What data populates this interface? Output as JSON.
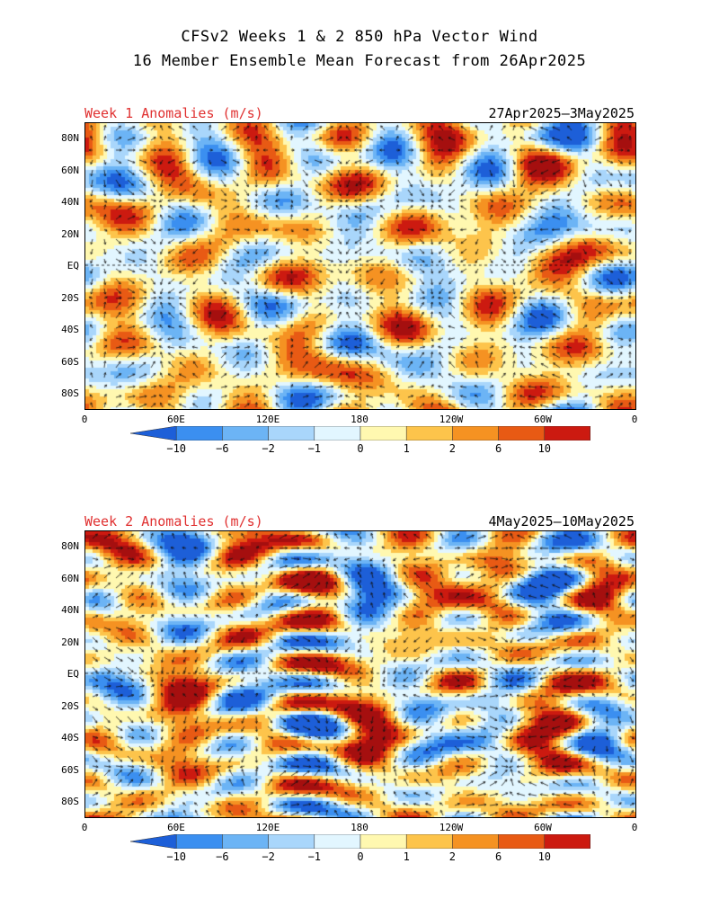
{
  "title_line1": "CFSv2 Weeks 1 & 2 850 hPa Vector Wind",
  "title_line2": "16 Member Ensemble Mean Forecast from 26Apr2025",
  "panels": [
    {
      "label": "Week 1 Anomalies (m/s)",
      "dates": "27Apr2025—3May2025"
    },
    {
      "label": "Week 2 Anomalies (m/s)",
      "dates": "4May2025—10May2025"
    }
  ],
  "lat_labels": [
    "80N",
    "60N",
    "40N",
    "20N",
    "EQ",
    "20S",
    "40S",
    "60S",
    "80S"
  ],
  "lon_labels": [
    "0",
    "60E",
    "120E",
    "180",
    "120W",
    "60W",
    "0"
  ],
  "colorbar": {
    "tick_labels": [
      "−10",
      "−6",
      "−2",
      "−1",
      "0",
      "1",
      "2",
      "6",
      "10"
    ],
    "colors": [
      "#1d5fd8",
      "#3b8ff0",
      "#6cb4f5",
      "#a9d6fb",
      "#e2f6ff",
      "#fff8b0",
      "#fdc44b",
      "#f59222",
      "#e85a14",
      "#cc1a10",
      "#a50f0f"
    ]
  }
}
